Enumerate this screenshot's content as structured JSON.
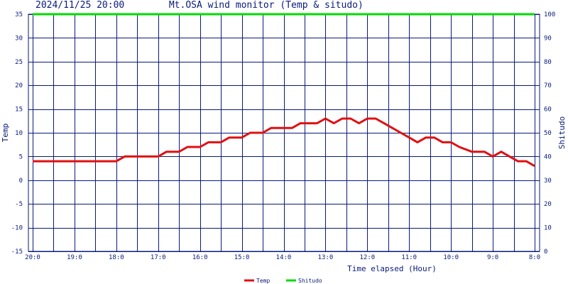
{
  "header": {
    "datetime": "2024/11/25 20:00",
    "title": "Mt.OSA wind monitor (Temp & situdo)"
  },
  "chart_data": {
    "type": "line",
    "xlabel": "Time elapsed (Hour)",
    "ylabel_left": "Temp",
    "ylabel_right": "Shitudo",
    "ylim_left": [
      -15,
      35
    ],
    "ylim_right": [
      0,
      100
    ],
    "yticks_left": [
      "35",
      "30",
      "25",
      "20",
      "15",
      "10",
      "5",
      "0",
      "-5",
      "-10",
      "-15"
    ],
    "yticks_right": [
      "100",
      "90",
      "80",
      "70",
      "60",
      "50",
      "40",
      "30",
      "20",
      "10",
      "0"
    ],
    "xlim": [
      0,
      12
    ],
    "xticks": [
      {
        "x": 0,
        "label": "20:0"
      },
      {
        "x": 1,
        "label": "19:0"
      },
      {
        "x": 2,
        "label": "18:0"
      },
      {
        "x": 3,
        "label": "17:0"
      },
      {
        "x": 4,
        "label": "16:0"
      },
      {
        "x": 5,
        "label": "15:0"
      },
      {
        "x": 6,
        "label": "14:0"
      },
      {
        "x": 7,
        "label": "13:0"
      },
      {
        "x": 8,
        "label": "12:0"
      },
      {
        "x": 9,
        "label": "11:0"
      },
      {
        "x": 10,
        "label": "10:0"
      },
      {
        "x": 11,
        "label": "9:0"
      },
      {
        "x": 12,
        "label": "8:0"
      }
    ],
    "grid": true,
    "legend_position": "bottom-center",
    "series": [
      {
        "name": "Temp",
        "axis": "left",
        "color": "#e01010",
        "x": [
          0,
          0.5,
          1,
          1.5,
          2,
          2.2,
          2.5,
          3,
          3.2,
          3.5,
          3.7,
          4,
          4.2,
          4.5,
          4.7,
          5,
          5.2,
          5.5,
          5.7,
          6,
          6.2,
          6.4,
          6.5,
          6.6,
          6.8,
          7,
          7.2,
          7.4,
          7.6,
          7.8,
          8,
          8.2,
          8.4,
          8.6,
          8.8,
          9,
          9.2,
          9.4,
          9.6,
          9.8,
          10,
          10.2,
          10.5,
          10.8,
          11,
          11.2,
          11.4,
          11.6,
          11.8,
          12
        ],
        "values": [
          4,
          4,
          4,
          4,
          4,
          5,
          5,
          5,
          6,
          6,
          7,
          7,
          8,
          8,
          9,
          9,
          10,
          10,
          11,
          11,
          11,
          12,
          12,
          12,
          12,
          13,
          12,
          13,
          13,
          12,
          13,
          13,
          12,
          11,
          10,
          9,
          8,
          9,
          9,
          8,
          8,
          7,
          6,
          6,
          5,
          6,
          5,
          4,
          4,
          3
        ]
      },
      {
        "name": "Shitudo",
        "axis": "right",
        "color": "#00dd00",
        "x": [
          0,
          12
        ],
        "values": [
          100,
          100
        ]
      }
    ]
  },
  "legend": {
    "temp_label": "Temp",
    "shitudo_label": "Shitudo",
    "temp_color": "#e01010",
    "shitudo_color": "#00dd00"
  },
  "colors": {
    "grid": "#0a1a7a",
    "text": "#0a1a7a"
  }
}
